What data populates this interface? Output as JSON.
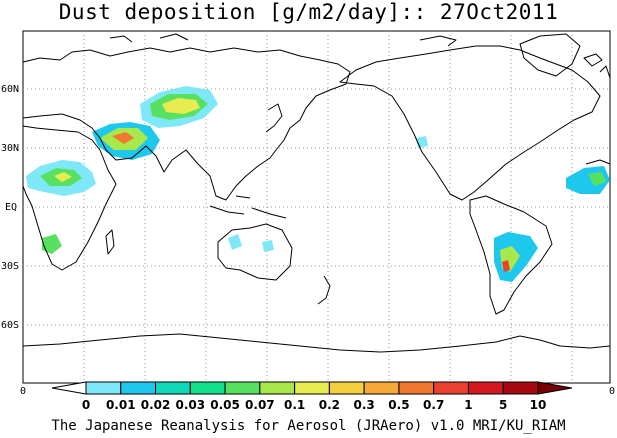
{
  "title": "Dust deposition [g/m2/day]:: 27Oct2011",
  "credit": "The Japanese Reanalysis for Aerosol (JRAero) v1.0 MRI/KU_RIAM",
  "lat_labels": [
    "60N",
    "30N",
    "EQ",
    "30S",
    "60S"
  ],
  "lat_values": [
    60,
    30,
    0,
    -30,
    -60
  ],
  "lon_edge_labels": [
    "0",
    "0"
  ],
  "colorbar": {
    "labels": [
      "0",
      "0.01",
      "0.02",
      "0.03",
      "0.05",
      "0.07",
      "0.1",
      "0.2",
      "0.3",
      "0.5",
      "0.7",
      "1",
      "5",
      "10"
    ],
    "colors": [
      "#ffffff",
      "#7fe8f8",
      "#1ec8ec",
      "#10d8b8",
      "#12e08a",
      "#58e060",
      "#a8e84a",
      "#e8ec50",
      "#f4d040",
      "#f6a838",
      "#f07830",
      "#ec4030",
      "#d41820",
      "#a80810",
      "#7a0000"
    ]
  },
  "map_colors": {
    "land_outline": "#000000",
    "grid": "#999999"
  }
}
